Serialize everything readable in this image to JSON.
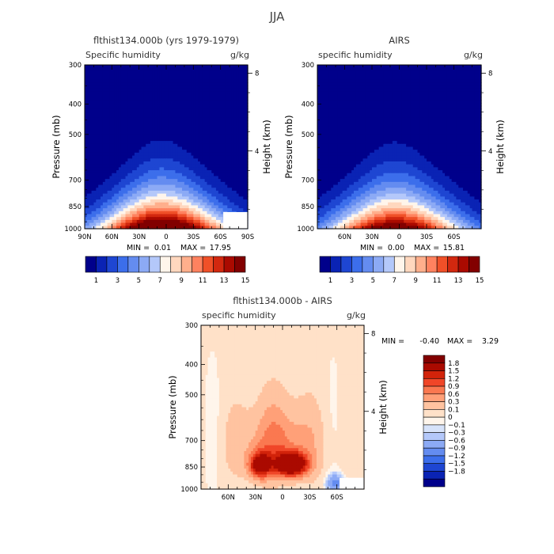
{
  "page_title": "JJA",
  "colors": {
    "seq": [
      "#00008B",
      "#0A23B4",
      "#1E46D2",
      "#3C6EEB",
      "#648CF0",
      "#8CAAF5",
      "#B4C8FA",
      "#FFF5EB",
      "#FFD7BE",
      "#FFAF8C",
      "#FF825F",
      "#F05028",
      "#D2280F",
      "#AA0A00",
      "#820000"
    ],
    "diff": [
      "#00008B",
      "#0A23B4",
      "#1E46D2",
      "#3C6EEB",
      "#648CF0",
      "#8CAAF5",
      "#B4C8FA",
      "#D7E3FA",
      "#FFF5EB",
      "#FFE1C8",
      "#FFC3A0",
      "#FFA078",
      "#FA7850",
      "#F04628",
      "#D2230A",
      "#AA0A00",
      "#820000"
    ]
  },
  "chart_data": [
    {
      "type": "heatmap",
      "panel": "model",
      "title": "flthist134.000b (yrs 1979-1979)",
      "subtitle_left": "Specific humidity",
      "subtitle_right": "g/kg",
      "ylabel": "Pressure (mb)",
      "ylabel_right": "Height (km)",
      "x_ticklabels": [
        "90N",
        "60N",
        "30N",
        "0",
        "30S",
        "60S",
        "90S"
      ],
      "x_range": [
        90,
        -90
      ],
      "y_ticklabels": [
        "300",
        "400",
        "500",
        "700",
        "850",
        "1000"
      ],
      "y_ticks": [
        300,
        400,
        500,
        700,
        850,
        1000
      ],
      "y_range": [
        300,
        1000
      ],
      "height_ticklabels": [
        "8",
        "4"
      ],
      "height_ticks": [
        8,
        4
      ],
      "min_label": "MIN =",
      "min_value": "0.01",
      "max_label": "MAX =",
      "max_value": "17.95",
      "levels": [
        1,
        2,
        3,
        4,
        5,
        6,
        7,
        8,
        9,
        10,
        11,
        12,
        13,
        14
      ],
      "colorbar_labels": [
        "1",
        "3",
        "5",
        "7",
        "9",
        "11",
        "13",
        "15"
      ],
      "peak_value": 17.95,
      "peak_lat": 5,
      "missing_box": {
        "lat_range": [
          -63,
          -90
        ],
        "p_range": [
          885,
          1000
        ]
      }
    },
    {
      "type": "heatmap",
      "panel": "obs",
      "title": "AIRS",
      "subtitle_left": "specific humidity",
      "subtitle_right": "g/kg",
      "ylabel": "Pressure (mb)",
      "ylabel_right": "Height (km)",
      "x_ticklabels": [
        "60N",
        "30N",
        "0",
        "30S",
        "60S"
      ],
      "x_range": [
        90,
        -90
      ],
      "y_ticklabels": [
        "300",
        "400",
        "500",
        "700",
        "850",
        "1000"
      ],
      "y_ticks": [
        300,
        400,
        500,
        700,
        850,
        1000
      ],
      "y_range": [
        300,
        1000
      ],
      "height_ticklabels": [
        "8",
        "4"
      ],
      "height_ticks": [
        8,
        4
      ],
      "min_label": "MIN =",
      "min_value": "0.00",
      "max_label": "MAX =",
      "max_value": "15.81",
      "levels": [
        1,
        2,
        3,
        4,
        5,
        6,
        7,
        8,
        9,
        10,
        11,
        12,
        13,
        14
      ],
      "colorbar_labels": [
        "1",
        "3",
        "5",
        "7",
        "9",
        "11",
        "13",
        "15"
      ],
      "peak_value": 15.81,
      "peak_lat": 5,
      "missing_box": null
    },
    {
      "type": "heatmap",
      "panel": "diff",
      "title": "flthist134.000b - AIRS",
      "subtitle_left": "specific humidity",
      "subtitle_right": "g/kg",
      "ylabel": "Pressure (mb)",
      "ylabel_right": "Height (km)",
      "x_ticklabels": [
        "60N",
        "30N",
        "0",
        "30S",
        "60S"
      ],
      "x_range": [
        90,
        -90
      ],
      "y_ticklabels": [
        "300",
        "400",
        "500",
        "700",
        "850",
        "1000"
      ],
      "y_ticks": [
        300,
        400,
        500,
        700,
        850,
        1000
      ],
      "y_range": [
        300,
        1000
      ],
      "height_ticklabels": [
        "8",
        "4"
      ],
      "height_ticks": [
        8,
        4
      ],
      "min_label": "MIN =",
      "min_value": "-0.40",
      "max_label": "MAX =",
      "max_value": "3.29",
      "levels": [
        -1.8,
        -1.5,
        -1.2,
        -0.9,
        -0.6,
        -0.3,
        -0.1,
        0,
        0.1,
        0.3,
        0.6,
        0.9,
        1.2,
        1.5,
        1.8
      ],
      "colorbar_labels": [
        "1.8",
        "1.5",
        "1.2",
        "0.9",
        "0.6",
        "0.3",
        "0.1",
        "0",
        "−0.1",
        "−0.3",
        "−0.6",
        "−0.9",
        "−1.2",
        "−1.5",
        "−1.8"
      ],
      "missing_box": {
        "lat_range": [
          -63,
          -90
        ],
        "p_range": [
          920,
          1000
        ]
      }
    }
  ]
}
